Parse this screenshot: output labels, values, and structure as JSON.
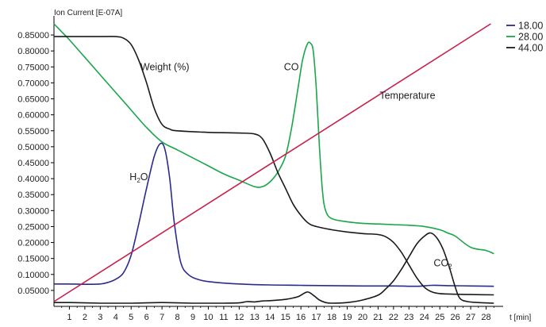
{
  "colors": {
    "s18": "#2b2b8c",
    "s28": "#1aa64a",
    "s44": "#1a1a1a",
    "weight": "#1a1a1a",
    "temperature": "#c8204a",
    "axis": "#000000"
  },
  "chart_data": {
    "type": "line",
    "ylabel": "Ion Current [E-07A]",
    "xlabel": "t [min]",
    "xlim": [
      0,
      29
    ],
    "ylim": [
      0,
      0.885
    ],
    "x_ticks": [
      1,
      2,
      3,
      4,
      5,
      6,
      7,
      8,
      9,
      10,
      11,
      12,
      13,
      14,
      15,
      16,
      17,
      18,
      19,
      20,
      21,
      22,
      23,
      24,
      25,
      26,
      27,
      28
    ],
    "y_ticks": [
      {
        "v": 0.05,
        "t": "0.05000"
      },
      {
        "v": 0.1,
        "t": "0.10000"
      },
      {
        "v": 0.15,
        "t": "0.15000"
      },
      {
        "v": 0.2,
        "t": "0.20000"
      },
      {
        "v": 0.25,
        "t": "0.25000"
      },
      {
        "v": 0.3,
        "t": "0.30000"
      },
      {
        "v": 0.35,
        "t": "0.35000"
      },
      {
        "v": 0.4,
        "t": "0.40000"
      },
      {
        "v": 0.45,
        "t": "0.45000"
      },
      {
        "v": 0.5,
        "t": "0.50000"
      },
      {
        "v": 0.55,
        "t": "0.55000"
      },
      {
        "v": 0.6,
        "t": "0.60000"
      },
      {
        "v": 0.65,
        "t": "0.65000"
      },
      {
        "v": 0.7,
        "t": "0.70000"
      },
      {
        "v": 0.75,
        "t": "0.75000"
      },
      {
        "v": 0.8,
        "t": "0.80000"
      },
      {
        "v": 0.85,
        "t": "0.85000"
      }
    ],
    "legend": [
      {
        "name": "18.00",
        "color_key": "s18"
      },
      {
        "name": "28.00",
        "color_key": "s28"
      },
      {
        "name": "44.00",
        "color_key": "s44"
      }
    ],
    "legend_position": "top-right",
    "grid": false,
    "series": [
      {
        "key": "s18",
        "color_key": "s18",
        "points": [
          [
            0,
            0.07
          ],
          [
            1,
            0.07
          ],
          [
            2,
            0.069
          ],
          [
            3,
            0.07
          ],
          [
            3.5,
            0.075
          ],
          [
            4,
            0.085
          ],
          [
            4.5,
            0.105
          ],
          [
            5,
            0.16
          ],
          [
            5.5,
            0.26
          ],
          [
            6,
            0.37
          ],
          [
            6.5,
            0.47
          ],
          [
            6.9,
            0.51
          ],
          [
            7.2,
            0.49
          ],
          [
            7.5,
            0.4
          ],
          [
            7.8,
            0.26
          ],
          [
            8.2,
            0.14
          ],
          [
            8.7,
            0.1
          ],
          [
            9.5,
            0.082
          ],
          [
            10.5,
            0.075
          ],
          [
            12,
            0.07
          ],
          [
            14,
            0.067
          ],
          [
            16,
            0.066
          ],
          [
            18,
            0.065
          ],
          [
            20,
            0.064
          ],
          [
            22,
            0.064
          ],
          [
            23.5,
            0.063
          ],
          [
            24.5,
            0.066
          ],
          [
            25.5,
            0.065
          ],
          [
            27,
            0.064
          ],
          [
            28.5,
            0.063
          ]
        ]
      },
      {
        "key": "s28",
        "color_key": "s28",
        "points": [
          [
            0,
            0.885
          ],
          [
            0.5,
            0.86
          ],
          [
            1,
            0.835
          ],
          [
            2,
            0.78
          ],
          [
            3,
            0.725
          ],
          [
            4,
            0.67
          ],
          [
            5,
            0.615
          ],
          [
            6,
            0.56
          ],
          [
            7,
            0.515
          ],
          [
            8,
            0.49
          ],
          [
            9,
            0.465
          ],
          [
            10,
            0.44
          ],
          [
            11,
            0.415
          ],
          [
            12,
            0.395
          ],
          [
            13,
            0.375
          ],
          [
            13.5,
            0.375
          ],
          [
            14,
            0.39
          ],
          [
            14.5,
            0.42
          ],
          [
            15,
            0.47
          ],
          [
            15.4,
            0.56
          ],
          [
            15.8,
            0.68
          ],
          [
            16.1,
            0.77
          ],
          [
            16.4,
            0.82
          ],
          [
            16.6,
            0.825
          ],
          [
            16.8,
            0.8
          ],
          [
            17.0,
            0.68
          ],
          [
            17.2,
            0.5
          ],
          [
            17.4,
            0.36
          ],
          [
            17.6,
            0.3
          ],
          [
            18,
            0.275
          ],
          [
            19,
            0.265
          ],
          [
            20,
            0.26
          ],
          [
            21,
            0.258
          ],
          [
            22,
            0.256
          ],
          [
            23,
            0.254
          ],
          [
            24,
            0.25
          ],
          [
            25,
            0.24
          ],
          [
            25.5,
            0.23
          ],
          [
            26,
            0.22
          ],
          [
            27,
            0.185
          ],
          [
            28,
            0.175
          ],
          [
            28.5,
            0.165
          ]
        ]
      },
      {
        "key": "s44",
        "color_key": "s44",
        "points": [
          [
            0,
            0.012
          ],
          [
            1,
            0.012
          ],
          [
            2,
            0.011
          ],
          [
            3,
            0.01
          ],
          [
            4,
            0.01
          ],
          [
            5,
            0.01
          ],
          [
            6,
            0.011
          ],
          [
            7,
            0.012
          ],
          [
            8,
            0.011
          ],
          [
            9,
            0.01
          ],
          [
            10,
            0.01
          ],
          [
            11,
            0.01
          ],
          [
            12,
            0.011
          ],
          [
            12.5,
            0.015
          ],
          [
            13,
            0.014
          ],
          [
            13.5,
            0.017
          ],
          [
            14,
            0.018
          ],
          [
            15,
            0.022
          ],
          [
            15.8,
            0.03
          ],
          [
            16.4,
            0.045
          ],
          [
            16.8,
            0.035
          ],
          [
            17.2,
            0.02
          ],
          [
            17.6,
            0.012
          ],
          [
            18,
            0.01
          ],
          [
            19,
            0.012
          ],
          [
            20,
            0.02
          ],
          [
            21,
            0.035
          ],
          [
            21.5,
            0.055
          ],
          [
            22,
            0.08
          ],
          [
            22.5,
            0.115
          ],
          [
            23,
            0.155
          ],
          [
            23.5,
            0.195
          ],
          [
            24,
            0.22
          ],
          [
            24.4,
            0.23
          ],
          [
            24.8,
            0.215
          ],
          [
            25.2,
            0.18
          ],
          [
            25.6,
            0.125
          ],
          [
            26,
            0.06
          ],
          [
            26.3,
            0.025
          ],
          [
            26.8,
            0.015
          ],
          [
            27.5,
            0.012
          ],
          [
            28.5,
            0.01
          ]
        ]
      },
      {
        "key": "weight",
        "color_key": "weight",
        "points": [
          [
            0,
            0.845
          ],
          [
            1,
            0.845
          ],
          [
            2,
            0.845
          ],
          [
            3,
            0.845
          ],
          [
            4,
            0.845
          ],
          [
            4.5,
            0.84
          ],
          [
            5,
            0.82
          ],
          [
            5.5,
            0.77
          ],
          [
            6,
            0.7
          ],
          [
            6.5,
            0.62
          ],
          [
            7,
            0.57
          ],
          [
            7.5,
            0.555
          ],
          [
            8,
            0.55
          ],
          [
            10,
            0.545
          ],
          [
            12,
            0.543
          ],
          [
            13,
            0.54
          ],
          [
            13.5,
            0.525
          ],
          [
            14,
            0.48
          ],
          [
            14.5,
            0.42
          ],
          [
            15,
            0.37
          ],
          [
            15.5,
            0.32
          ],
          [
            16,
            0.285
          ],
          [
            16.5,
            0.26
          ],
          [
            17,
            0.25
          ],
          [
            18,
            0.24
          ],
          [
            19,
            0.233
          ],
          [
            20,
            0.228
          ],
          [
            21,
            0.225
          ],
          [
            21.5,
            0.218
          ],
          [
            22,
            0.2
          ],
          [
            22.5,
            0.17
          ],
          [
            23,
            0.13
          ],
          [
            23.5,
            0.09
          ],
          [
            24,
            0.06
          ],
          [
            24.5,
            0.045
          ],
          [
            25,
            0.04
          ],
          [
            26,
            0.038
          ],
          [
            27,
            0.037
          ],
          [
            28.5,
            0.036
          ]
        ]
      },
      {
        "key": "temperature",
        "color_key": "temperature",
        "points": [
          [
            0,
            0.015
          ],
          [
            28.3,
            0.885
          ]
        ]
      }
    ],
    "annotations": [
      {
        "text": "Weight (%)",
        "x": 5.6,
        "y": 0.74
      },
      {
        "text": "CO",
        "x": 14.9,
        "y": 0.74
      },
      {
        "text": "Temperature",
        "x": 21.1,
        "y": 0.65
      },
      {
        "text": "H",
        "sub": "2",
        "tail": "O",
        "x": 4.9,
        "y": 0.395
      },
      {
        "text": "CO",
        "sub": "2",
        "x": 24.6,
        "y": 0.125
      }
    ]
  }
}
